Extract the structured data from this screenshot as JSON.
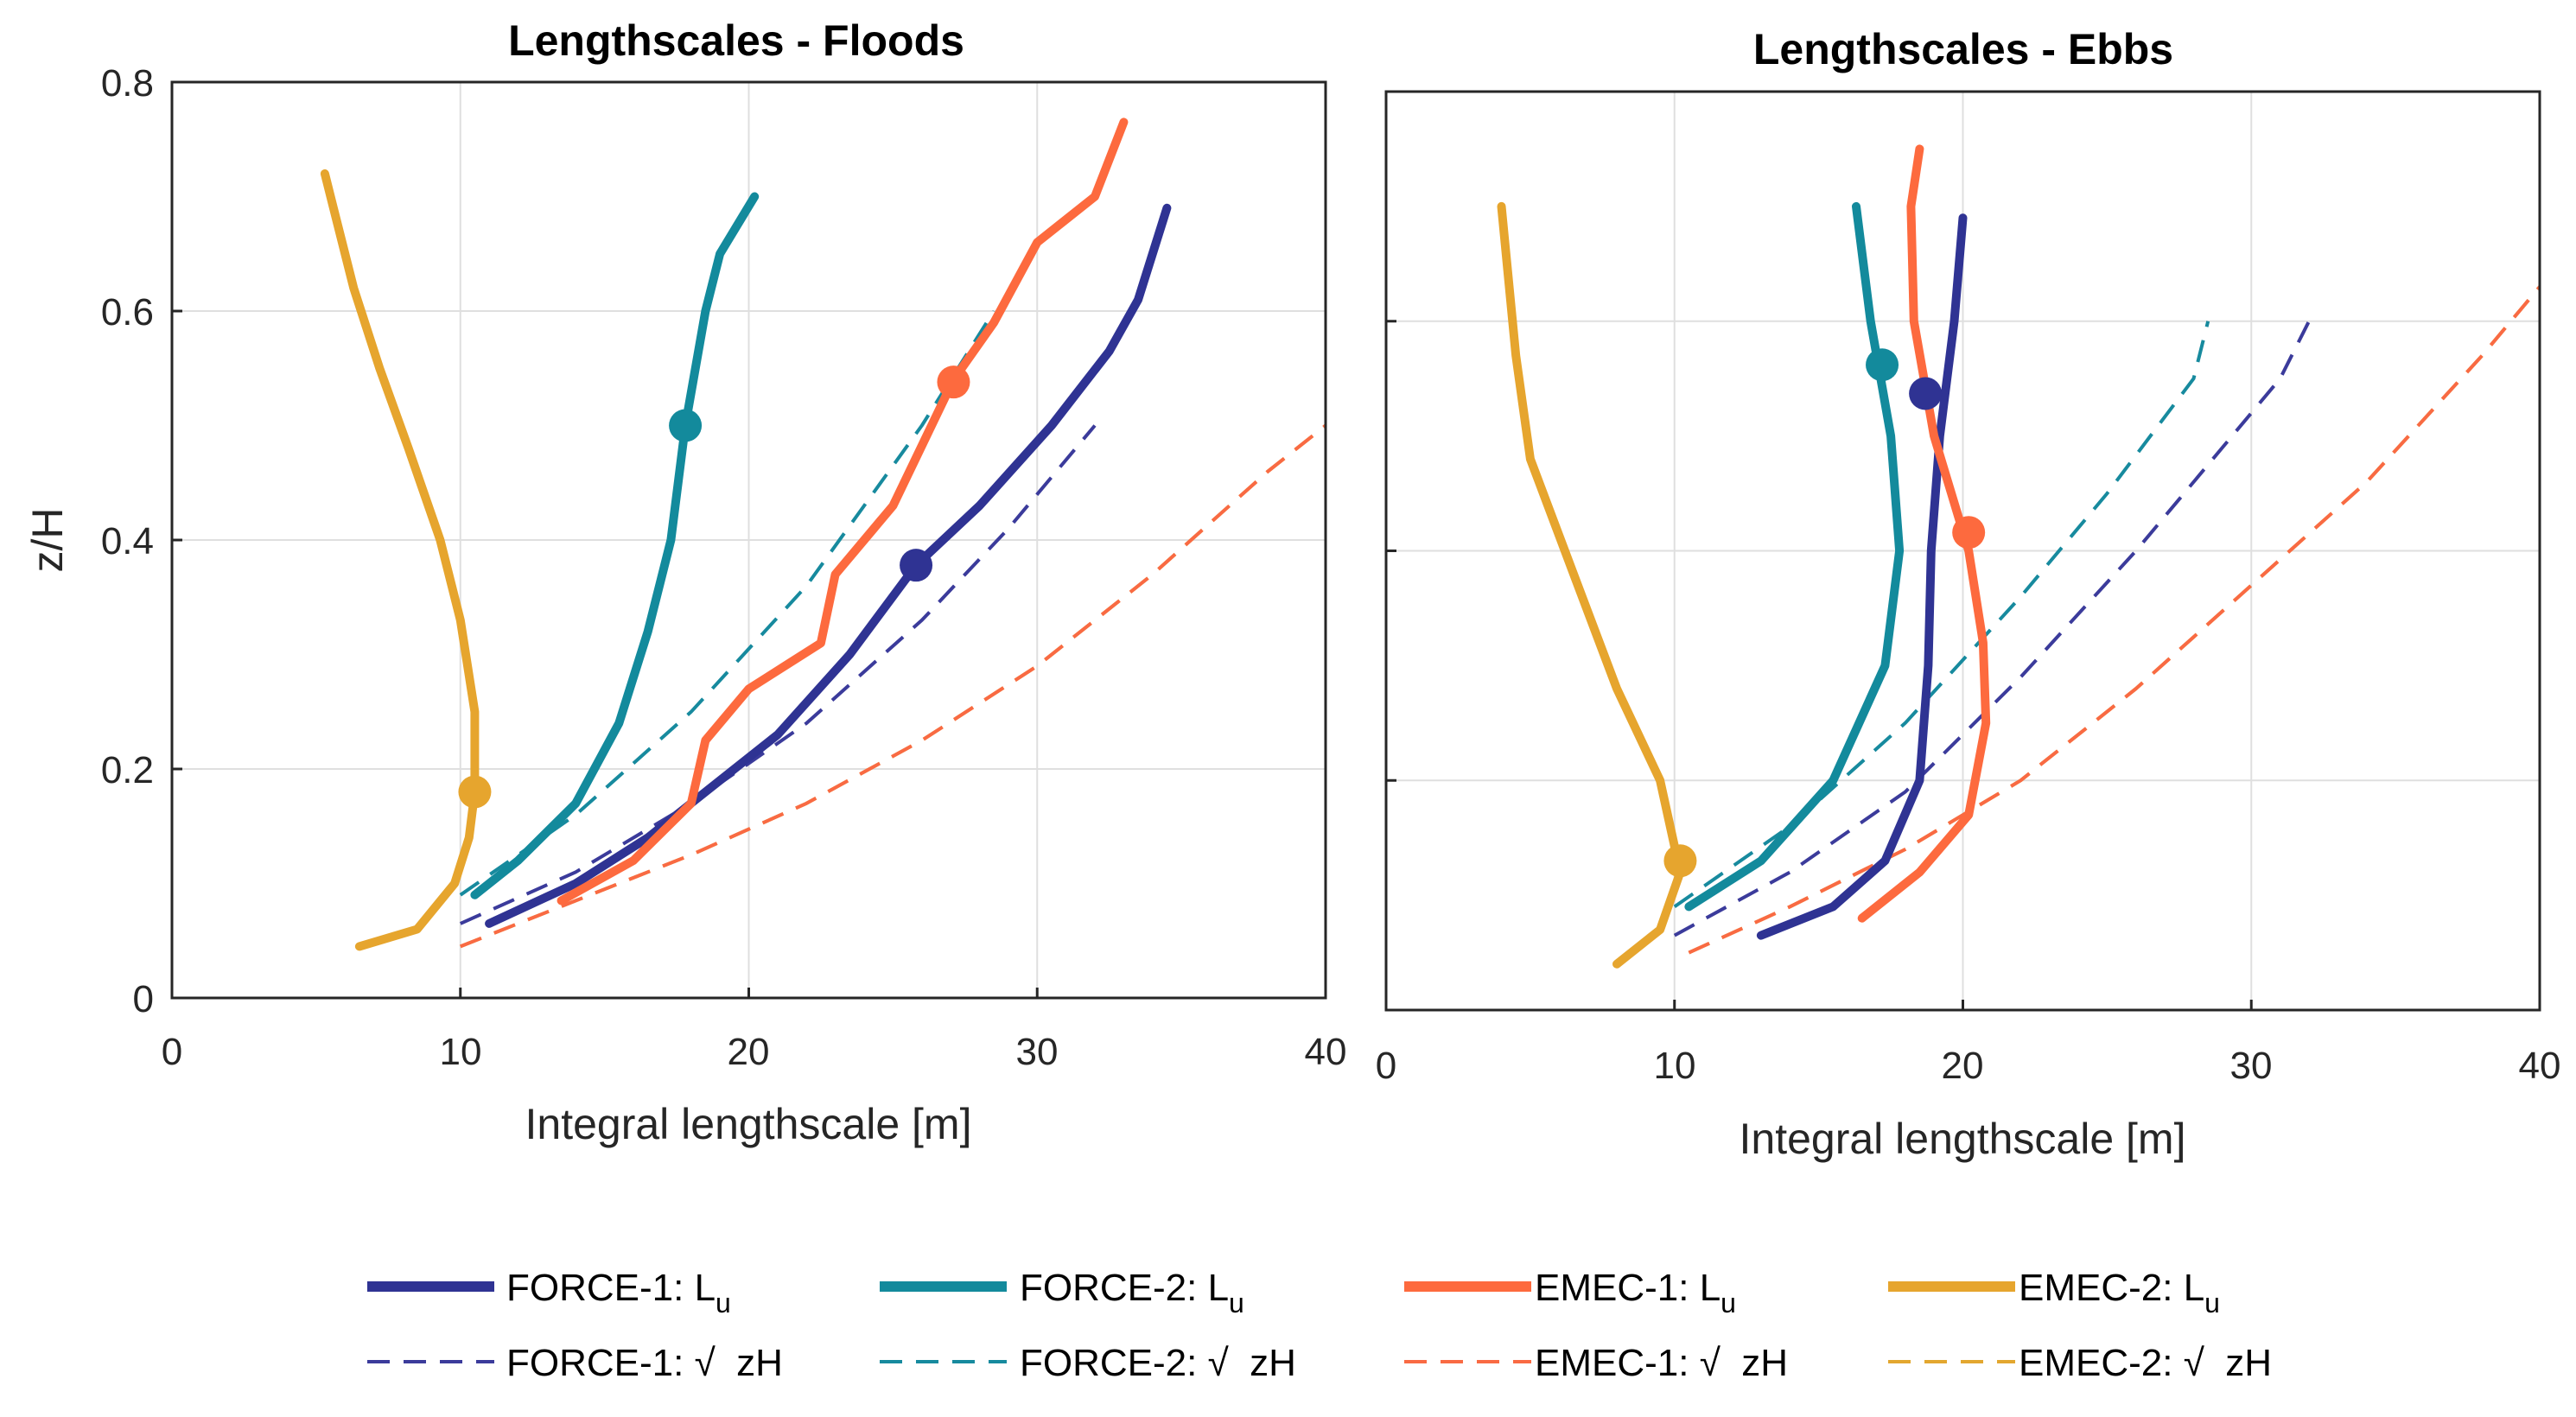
{
  "chart_data": [
    {
      "type": "line",
      "title": "Lengthscales - Floods",
      "xlabel": "Integral lengthscale [m]",
      "ylabel": "z/H",
      "xlim": [
        0,
        40
      ],
      "ylim": [
        0,
        0.8
      ],
      "xticks": [
        "0",
        "10",
        "20",
        "30",
        "40"
      ],
      "yticks": [
        "0",
        "0.2",
        "0.4",
        "0.6",
        "0.8"
      ],
      "grid": true,
      "series": [
        {
          "key": "emec2_sqrt",
          "name": "EMEC-2: √ zH",
          "color": "#e3a72f",
          "dashed": true,
          "points": [
            [
              10,
              0.045
            ],
            [
              14,
              0.085
            ],
            [
              18,
              0.125
            ],
            [
              22,
              0.17
            ],
            [
              26,
              0.225
            ],
            [
              30,
              0.29
            ],
            [
              34,
              0.37
            ],
            [
              38,
              0.46
            ],
            [
              40,
              0.5
            ]
          ]
        },
        {
          "key": "emec1_sqrt",
          "name": "EMEC-1: √ zH",
          "color": "#f96a43",
          "dashed": true,
          "points": [
            [
              10,
              0.045
            ],
            [
              14,
              0.085
            ],
            [
              18,
              0.125
            ],
            [
              22,
              0.17
            ],
            [
              26,
              0.225
            ],
            [
              30,
              0.29
            ],
            [
              34,
              0.37
            ],
            [
              38,
              0.46
            ],
            [
              40,
              0.5
            ]
          ]
        },
        {
          "key": "force1_sqrt",
          "name": "FORCE-1: √ zH",
          "color": "#3b3b9b",
          "dashed": true,
          "points": [
            [
              10,
              0.065
            ],
            [
              14,
              0.11
            ],
            [
              18,
              0.17
            ],
            [
              22,
              0.24
            ],
            [
              26,
              0.33
            ],
            [
              29,
              0.41
            ],
            [
              32,
              0.5
            ]
          ]
        },
        {
          "key": "force2_sqrt",
          "name": "FORCE-2: √ zH",
          "color": "#178a9e",
          "dashed": true,
          "points": [
            [
              10,
              0.09
            ],
            [
              14,
              0.16
            ],
            [
              18,
              0.25
            ],
            [
              22,
              0.36
            ],
            [
              26,
              0.5
            ],
            [
              28.5,
              0.6
            ]
          ]
        },
        {
          "key": "force1_lu",
          "name": "FORCE-1: Lu",
          "color": "#2f3393",
          "dashed": false,
          "points": [
            [
              11,
              0.065
            ],
            [
              14,
              0.1
            ],
            [
              16.5,
              0.14
            ],
            [
              18.5,
              0.18
            ],
            [
              21,
              0.23
            ],
            [
              23.5,
              0.3
            ],
            [
              25.8,
              0.378
            ],
            [
              28,
              0.43
            ],
            [
              30.5,
              0.5
            ],
            [
              32.5,
              0.565
            ],
            [
              33.5,
              0.61
            ],
            [
              34.5,
              0.69
            ]
          ]
        },
        {
          "key": "force2_lu",
          "name": "FORCE-2: Lu",
          "color": "#138a9c",
          "dashed": false,
          "points": [
            [
              10.5,
              0.09
            ],
            [
              12,
              0.12
            ],
            [
              14,
              0.17
            ],
            [
              15.5,
              0.24
            ],
            [
              16.5,
              0.32
            ],
            [
              17.3,
              0.4
            ],
            [
              17.8,
              0.5
            ],
            [
              18.5,
              0.6
            ],
            [
              19,
              0.65
            ],
            [
              20.2,
              0.7
            ]
          ]
        },
        {
          "key": "emec1_lu",
          "name": "EMEC-1: Lu",
          "color": "#fd6a3e",
          "dashed": false,
          "points": [
            [
              13.5,
              0.085
            ],
            [
              16,
              0.12
            ],
            [
              18,
              0.17
            ],
            [
              18.5,
              0.225
            ],
            [
              20,
              0.27
            ],
            [
              22.5,
              0.31
            ],
            [
              23,
              0.37
            ],
            [
              25,
              0.43
            ],
            [
              27.1,
              0.54
            ],
            [
              28.5,
              0.59
            ],
            [
              30,
              0.66
            ],
            [
              32,
              0.7
            ],
            [
              33,
              0.765
            ]
          ]
        },
        {
          "key": "emec2_lu",
          "name": "EMEC-2: Lu",
          "color": "#e6a52e",
          "dashed": false,
          "points": [
            [
              6.5,
              0.045
            ],
            [
              8.5,
              0.06
            ],
            [
              9.8,
              0.1
            ],
            [
              10.3,
              0.14
            ],
            [
              10.5,
              0.18
            ],
            [
              10.5,
              0.25
            ],
            [
              10,
              0.33
            ],
            [
              9.3,
              0.4
            ],
            [
              8.2,
              0.48
            ],
            [
              7.2,
              0.55
            ],
            [
              6.3,
              0.62
            ],
            [
              5.6,
              0.69
            ],
            [
              5.3,
              0.72
            ]
          ]
        }
      ],
      "markers": [
        {
          "key": "force2_lu",
          "x": 17.8,
          "y": 0.5
        },
        {
          "key": "force1_lu",
          "x": 25.8,
          "y": 0.378
        },
        {
          "key": "emec1_lu",
          "x": 27.1,
          "y": 0.538
        },
        {
          "key": "emec2_lu",
          "x": 10.5,
          "y": 0.18
        }
      ]
    },
    {
      "type": "line",
      "title": "Lengthscales - Ebbs",
      "xlabel": "Integral lengthscale [m]",
      "ylabel": "",
      "xlim": [
        0,
        40
      ],
      "ylim": [
        0,
        0.8
      ],
      "xticks": [
        "0",
        "10",
        "20",
        "30",
        "40"
      ],
      "yticks": [
        "",
        "",
        "",
        "",
        ""
      ],
      "grid": true,
      "series": [
        {
          "key": "emec2_sqrt",
          "name": "EMEC-2: √ zH",
          "color": "#e3a72f",
          "dashed": true,
          "points": [
            [
              10.5,
              0.05
            ],
            [
              14,
              0.09
            ],
            [
              18,
              0.14
            ],
            [
              22,
              0.2
            ],
            [
              26,
              0.28
            ],
            [
              30,
              0.37
            ],
            [
              34,
              0.46
            ],
            [
              38,
              0.57
            ],
            [
              40,
              0.63
            ]
          ]
        },
        {
          "key": "emec1_sqrt",
          "name": "EMEC-1: √ zH",
          "color": "#f96a43",
          "dashed": true,
          "points": [
            [
              10.5,
              0.05
            ],
            [
              14,
              0.09
            ],
            [
              18,
              0.14
            ],
            [
              22,
              0.2
            ],
            [
              26,
              0.28
            ],
            [
              30,
              0.37
            ],
            [
              34,
              0.46
            ],
            [
              38,
              0.57
            ],
            [
              40,
              0.63
            ]
          ]
        },
        {
          "key": "force1_sqrt",
          "name": "FORCE-1: √ zH",
          "color": "#3b3b9b",
          "dashed": true,
          "points": [
            [
              10,
              0.065
            ],
            [
              14,
              0.12
            ],
            [
              18,
              0.19
            ],
            [
              22,
              0.29
            ],
            [
              26,
              0.4
            ],
            [
              29,
              0.49
            ],
            [
              31,
              0.55
            ],
            [
              32,
              0.6
            ]
          ]
        },
        {
          "key": "force2_sqrt",
          "name": "FORCE-2: √ zH",
          "color": "#178a9e",
          "dashed": true,
          "points": [
            [
              10,
              0.09
            ],
            [
              14,
              0.16
            ],
            [
              18,
              0.25
            ],
            [
              22,
              0.36
            ],
            [
              25,
              0.45
            ],
            [
              28,
              0.55
            ],
            [
              28.5,
              0.6
            ]
          ]
        },
        {
          "key": "force1_lu",
          "name": "FORCE-1: Lu",
          "color": "#2f3393",
          "dashed": false,
          "points": [
            [
              13,
              0.065
            ],
            [
              15.5,
              0.09
            ],
            [
              17.3,
              0.13
            ],
            [
              18.5,
              0.2
            ],
            [
              18.8,
              0.3
            ],
            [
              18.9,
              0.4
            ],
            [
              19.2,
              0.5
            ],
            [
              19.7,
              0.6
            ],
            [
              20,
              0.69
            ]
          ]
        },
        {
          "key": "force2_lu",
          "name": "FORCE-2: Lu",
          "color": "#138a9c",
          "dashed": false,
          "points": [
            [
              10.5,
              0.09
            ],
            [
              13,
              0.13
            ],
            [
              15.5,
              0.2
            ],
            [
              17.3,
              0.3
            ],
            [
              17.8,
              0.4
            ],
            [
              17.5,
              0.5
            ],
            [
              16.8,
              0.6
            ],
            [
              16.3,
              0.7
            ]
          ]
        },
        {
          "key": "emec1_lu",
          "name": "EMEC-1: Lu",
          "color": "#fd6a3e",
          "dashed": false,
          "points": [
            [
              16.5,
              0.08
            ],
            [
              18.5,
              0.12
            ],
            [
              20.2,
              0.17
            ],
            [
              20.8,
              0.25
            ],
            [
              20.7,
              0.32
            ],
            [
              20.2,
              0.4
            ],
            [
              19,
              0.5
            ],
            [
              18.3,
              0.6
            ],
            [
              18.2,
              0.7
            ],
            [
              18.5,
              0.75
            ]
          ]
        },
        {
          "key": "emec2_lu",
          "name": "EMEC-2: Lu",
          "color": "#e6a52e",
          "dashed": false,
          "points": [
            [
              8,
              0.04
            ],
            [
              9.5,
              0.07
            ],
            [
              10.2,
              0.12
            ],
            [
              9.5,
              0.2
            ],
            [
              8,
              0.28
            ],
            [
              6.5,
              0.38
            ],
            [
              5,
              0.48
            ],
            [
              4.5,
              0.57
            ],
            [
              4,
              0.7
            ]
          ]
        }
      ],
      "markers": [
        {
          "key": "force2_lu",
          "x": 17.2,
          "y": 0.562
        },
        {
          "key": "force1_lu",
          "x": 18.7,
          "y": 0.537
        },
        {
          "key": "emec1_lu",
          "x": 20.2,
          "y": 0.416
        },
        {
          "key": "emec2_lu",
          "x": 10.2,
          "y": 0.13
        }
      ]
    }
  ],
  "legend": {
    "row1": [
      {
        "key": "force1_lu",
        "label": "FORCE-1: L",
        "sub": "u",
        "color": "#2f3393",
        "dashed": false
      },
      {
        "key": "force2_lu",
        "label": "FORCE-2: L",
        "sub": "u",
        "color": "#138a9c",
        "dashed": false
      },
      {
        "key": "emec1_lu",
        "label": "EMEC-1: L",
        "sub": "u",
        "color": "#fd6a3e",
        "dashed": false
      },
      {
        "key": "emec2_lu",
        "label": "EMEC-2: L",
        "sub": "u",
        "color": "#e6a52e",
        "dashed": false
      }
    ],
    "row2": [
      {
        "key": "force1_sqrt",
        "label": "FORCE-1: √  zH",
        "color": "#3b3b9b",
        "dashed": true
      },
      {
        "key": "force2_sqrt",
        "label": "FORCE-2: √  zH",
        "color": "#178a9e",
        "dashed": true
      },
      {
        "key": "emec1_sqrt",
        "label": "EMEC-1: √  zH",
        "color": "#f96a43",
        "dashed": true
      },
      {
        "key": "emec2_sqrt",
        "label": "EMEC-2: √  zH",
        "color": "#e3a72f",
        "dashed": true
      }
    ]
  }
}
